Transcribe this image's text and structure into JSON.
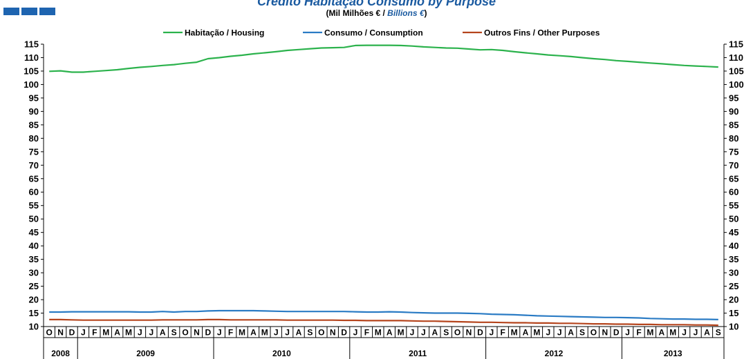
{
  "header": {
    "title": "Crédito Habitação Consumo by Purpose",
    "subtitle_pt": "(Mil Milhões € / ",
    "subtitle_en": "Billions €",
    "subtitle_end": ")"
  },
  "chart_data": {
    "type": "line",
    "yticks": [
      10,
      15,
      20,
      25,
      30,
      35,
      40,
      45,
      50,
      55,
      60,
      65,
      70,
      75,
      80,
      85,
      90,
      95,
      100,
      105,
      110,
      115
    ],
    "ylim": [
      10,
      115
    ],
    "month_labels": [
      "O",
      "N",
      "D",
      "J",
      "F",
      "M",
      "A",
      "M",
      "J",
      "J",
      "A",
      "S",
      "O",
      "N",
      "D",
      "J",
      "F",
      "M",
      "A",
      "M",
      "J",
      "J",
      "A",
      "S",
      "O",
      "N",
      "D",
      "J",
      "F",
      "M",
      "A",
      "M",
      "J",
      "J",
      "A",
      "S",
      "O",
      "N",
      "D",
      "J",
      "F",
      "M",
      "A",
      "M",
      "J",
      "J",
      "A",
      "S",
      "O",
      "N",
      "D",
      "J",
      "F",
      "M",
      "A",
      "M",
      "J",
      "J",
      "A",
      "S"
    ],
    "year_groups": [
      {
        "label": "2008",
        "months": 3
      },
      {
        "label": "2009",
        "months": 12
      },
      {
        "label": "2010",
        "months": 12
      },
      {
        "label": "2011",
        "months": 12
      },
      {
        "label": "2012",
        "months": 12
      },
      {
        "label": "2013",
        "months": 9
      }
    ],
    "series": [
      {
        "name": "Habitação / Housing",
        "color": "#2bb24c",
        "values": [
          104.9,
          105.1,
          104.6,
          104.6,
          104.9,
          105.2,
          105.5,
          106.0,
          106.4,
          106.7,
          107.1,
          107.4,
          107.9,
          108.3,
          109.6,
          110.0,
          110.5,
          110.9,
          111.4,
          111.8,
          112.2,
          112.7,
          113.0,
          113.3,
          113.6,
          113.7,
          113.8,
          114.5,
          114.6,
          114.6,
          114.6,
          114.5,
          114.3,
          114.0,
          113.8,
          113.6,
          113.5,
          113.2,
          112.9,
          113.0,
          112.7,
          112.2,
          111.8,
          111.4,
          111.0,
          110.7,
          110.4,
          110.0,
          109.6,
          109.3,
          108.9,
          108.6,
          108.3,
          108.0,
          107.7,
          107.4,
          107.1,
          106.9,
          106.7,
          106.5
        ]
      },
      {
        "name": "Consumo / Consumption",
        "color": "#2a7bc4",
        "values": [
          15.4,
          15.4,
          15.5,
          15.5,
          15.5,
          15.5,
          15.5,
          15.5,
          15.4,
          15.4,
          15.6,
          15.4,
          15.6,
          15.6,
          15.8,
          15.9,
          15.9,
          15.9,
          15.9,
          15.8,
          15.7,
          15.6,
          15.6,
          15.6,
          15.6,
          15.6,
          15.6,
          15.5,
          15.4,
          15.4,
          15.5,
          15.4,
          15.2,
          15.1,
          15.0,
          15.0,
          15.0,
          14.9,
          14.8,
          14.6,
          14.5,
          14.4,
          14.2,
          14.0,
          13.9,
          13.8,
          13.7,
          13.6,
          13.5,
          13.4,
          13.4,
          13.3,
          13.2,
          13.0,
          12.9,
          12.8,
          12.8,
          12.7,
          12.7,
          12.6
        ]
      },
      {
        "name": "Outros Fins / Other Purposes",
        "color": "#b5441c",
        "values": [
          12.6,
          12.6,
          12.5,
          12.4,
          12.4,
          12.4,
          12.4,
          12.4,
          12.4,
          12.4,
          12.5,
          12.5,
          12.5,
          12.5,
          12.6,
          12.6,
          12.5,
          12.5,
          12.5,
          12.5,
          12.5,
          12.4,
          12.4,
          12.4,
          12.4,
          12.4,
          12.3,
          12.3,
          12.2,
          12.2,
          12.2,
          12.2,
          12.1,
          12.0,
          12.0,
          11.9,
          11.8,
          11.7,
          11.6,
          11.6,
          11.5,
          11.4,
          11.4,
          11.3,
          11.3,
          11.2,
          11.2,
          11.1,
          11.0,
          11.0,
          10.9,
          10.9,
          10.8,
          10.8,
          10.7,
          10.7,
          10.7,
          10.6,
          10.6,
          10.5
        ]
      }
    ]
  }
}
